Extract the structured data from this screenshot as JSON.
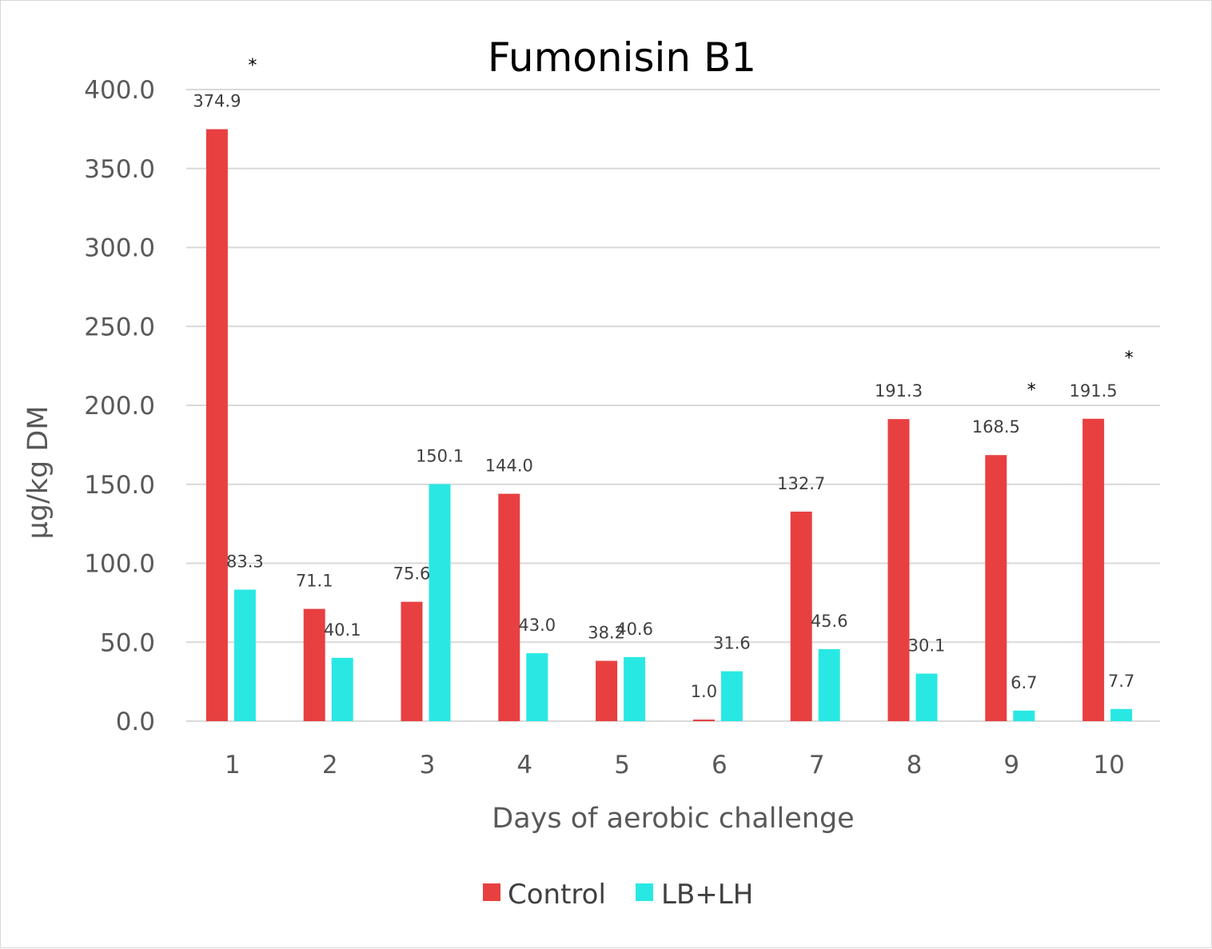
{
  "chart_data": {
    "type": "bar",
    "title": "Fumonisin B1",
    "xlabel": "Days of aerobic challenge",
    "ylabel": "µg/kg DM",
    "ylim": [
      0,
      400
    ],
    "yticks": [
      "0.0",
      "50.0",
      "100.0",
      "150.0",
      "200.0",
      "250.0",
      "300.0",
      "350.0",
      "400.0"
    ],
    "categories": [
      "1",
      "2",
      "3",
      "4",
      "5",
      "6",
      "7",
      "8",
      "9",
      "10"
    ],
    "series": [
      {
        "name": "Control",
        "color": "#E84040",
        "values": [
          374.9,
          71.1,
          75.6,
          144.0,
          38.2,
          1.0,
          132.7,
          191.3,
          168.5,
          191.5
        ],
        "labels": [
          "374.9",
          "71.1",
          "75.6",
          "144.0",
          "38.2",
          "1.0",
          "132.7",
          "191.3",
          "168.5",
          "191.5"
        ]
      },
      {
        "name": "LB+LH",
        "color": "#29E8E4",
        "values": [
          83.3,
          40.1,
          150.1,
          43.0,
          40.6,
          31.6,
          45.6,
          30.1,
          6.7,
          7.7
        ],
        "labels": [
          "83.3",
          "40.1",
          "150.1",
          "43.0",
          "40.6",
          "31.6",
          "45.6",
          "30.1",
          "6.7",
          "7.7"
        ]
      }
    ],
    "significance_marks": [
      {
        "category": "1",
        "text": "*"
      },
      {
        "category": "9",
        "text": "*"
      },
      {
        "category": "10",
        "text": "*"
      }
    ],
    "grid": true,
    "legend_position": "bottom"
  }
}
